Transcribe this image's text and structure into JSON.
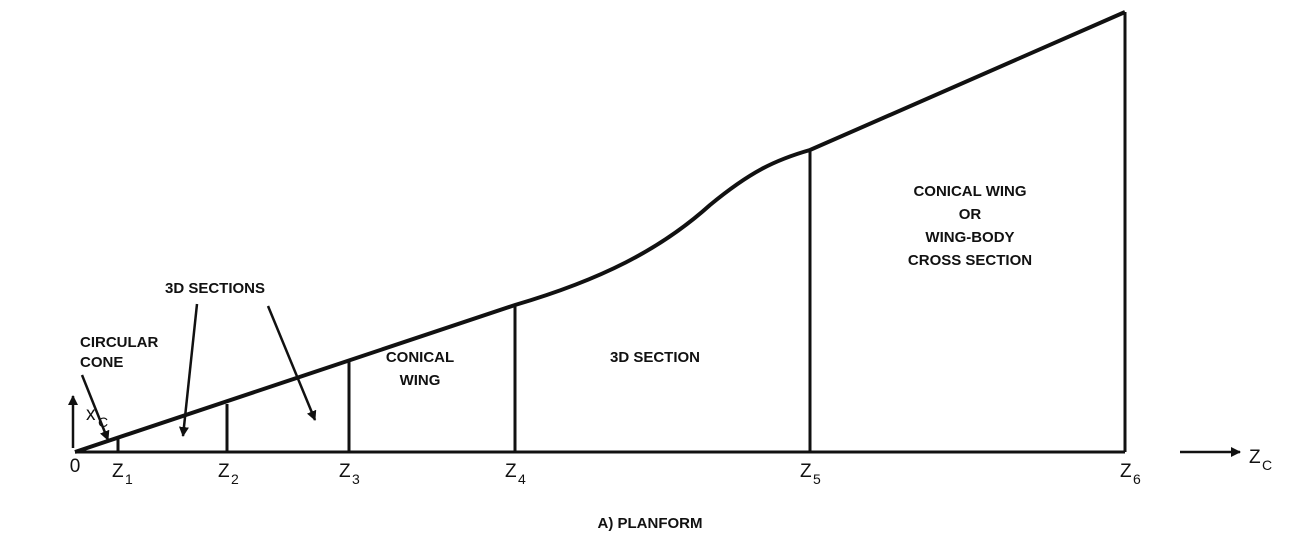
{
  "title": "A) PLANFORM",
  "origin": "0",
  "x_axis": {
    "name": "X",
    "subscript": "C"
  },
  "z_axis": {
    "name": "Z",
    "subscript": "C"
  },
  "stations": [
    {
      "name": "Z",
      "subscript": "1"
    },
    {
      "name": "Z",
      "subscript": "2"
    },
    {
      "name": "Z",
      "subscript": "3"
    },
    {
      "name": "Z",
      "subscript": "4"
    },
    {
      "name": "Z",
      "subscript": "5"
    },
    {
      "name": "Z",
      "subscript": "6"
    }
  ],
  "regions": [
    {
      "lines": [
        "CIRCULAR",
        "CONE"
      ]
    },
    {
      "lines": [
        "3D SECTIONS"
      ]
    },
    {
      "lines": [
        "CONICAL",
        "WING"
      ]
    },
    {
      "lines": [
        "3D SECTION"
      ]
    },
    {
      "lines": [
        "CONICAL WING",
        "OR",
        "WING-BODY",
        "CROSS SECTION"
      ]
    }
  ]
}
